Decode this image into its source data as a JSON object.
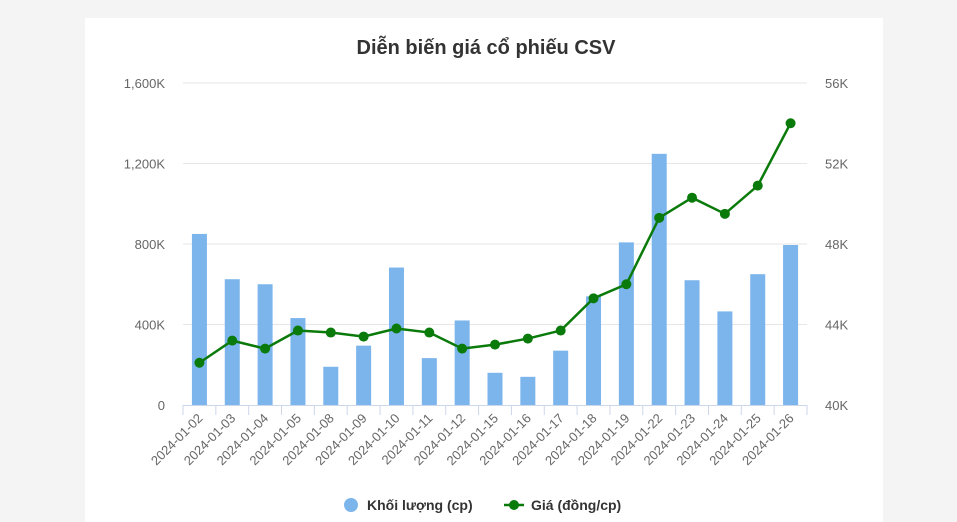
{
  "chart_data": {
    "type": "bar+line",
    "title": "Diễn biến giá cổ phiếu CSV",
    "categories": [
      "2024-01-02",
      "2024-01-03",
      "2024-01-04",
      "2024-01-05",
      "2024-01-08",
      "2024-01-09",
      "2024-01-10",
      "2024-01-11",
      "2024-01-12",
      "2024-01-15",
      "2024-01-16",
      "2024-01-17",
      "2024-01-18",
      "2024-01-19",
      "2024-01-22",
      "2024-01-23",
      "2024-01-24",
      "2024-01-25",
      "2024-01-26"
    ],
    "series": [
      {
        "name": "Khối lượng (cp)",
        "type": "bar",
        "axis": "left",
        "color": "#7cb5ec",
        "values": [
          850000,
          625000,
          600000,
          432000,
          190000,
          295000,
          683000,
          233000,
          420000,
          160000,
          140000,
          270000,
          540000,
          808000,
          1248000,
          620000,
          465000,
          650000,
          795000
        ]
      },
      {
        "name": "Giá (đồng/cp)",
        "type": "line",
        "axis": "right",
        "color": "#0a7a0a",
        "values": [
          42100,
          43200,
          42800,
          43700,
          43600,
          43400,
          43800,
          43600,
          42800,
          43000,
          43300,
          43700,
          45300,
          46000,
          49300,
          50300,
          49500,
          50900,
          54000
        ]
      }
    ],
    "y_left": {
      "ylim": [
        0,
        1600000
      ],
      "ticks": [
        "0",
        "400K",
        "800K",
        "1,200K",
        "1,600K"
      ]
    },
    "y_right": {
      "ylim": [
        40000,
        56000
      ],
      "ticks": [
        "40K",
        "44K",
        "48K",
        "52K",
        "56K"
      ]
    },
    "grid": true,
    "legend": "bottom-center"
  }
}
